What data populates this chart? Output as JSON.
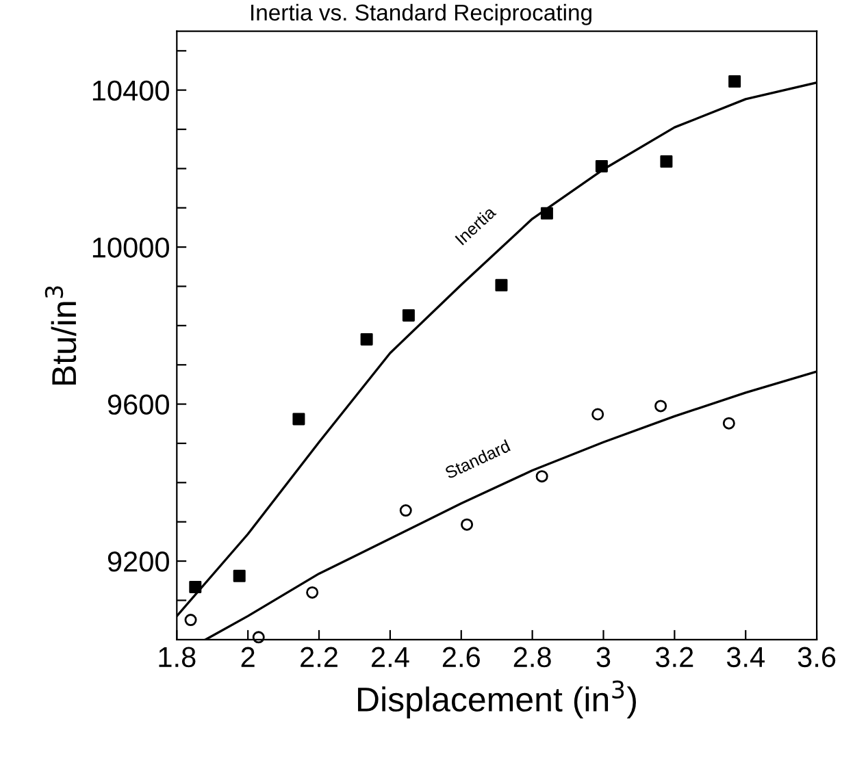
{
  "chart_data": {
    "type": "scatter",
    "title": "Inertia vs. Standard Reciprocating",
    "xlabel": "Displacement (in$^{3}$)",
    "ylabel": "Btu/in$^{3}$",
    "xlim": [
      1.8,
      3.6
    ],
    "xticks": [
      1.8,
      2,
      2.2,
      2.4,
      2.6,
      2.8,
      3,
      3.2,
      3.4,
      3.6
    ],
    "ylim": [
      9000,
      10550
    ],
    "yticks": [
      {
        "value": 9100,
        "label": null
      },
      9200,
      {
        "value": 9300,
        "label": null
      },
      {
        "value": 9400,
        "label": null
      },
      {
        "value": 9500,
        "label": null
      },
      9600,
      {
        "value": 9700,
        "label": null
      },
      {
        "value": 9800,
        "label": null
      },
      {
        "value": 9900,
        "label": null
      },
      10000,
      {
        "value": 10100,
        "label": null
      },
      {
        "value": 10200,
        "label": null
      },
      {
        "value": 10300,
        "label": null
      },
      10400,
      {
        "value": 10500,
        "label": null
      }
    ],
    "grid": false,
    "legend": false,
    "series": [
      {
        "marker": "square",
        "color": "#000000",
        "x": [
          1.852,
          1.976,
          2.143,
          2.334,
          2.452,
          2.713,
          2.841,
          2.995,
          3.177,
          3.369
        ],
        "values": [
          9134,
          9162,
          9562,
          9765,
          9826,
          9903,
          10086,
          10206,
          10218,
          10422
        ]
      },
      {
        "marker": "circle",
        "color": "#000000",
        "x": [
          1.839,
          2.03,
          2.181,
          2.444,
          2.616,
          2.827,
          2.984,
          3.161,
          3.353
        ],
        "values": [
          9050,
          9006,
          9120,
          9329,
          9293,
          9416,
          9574,
          9595,
          9551
        ]
      },
      {
        "type": "line",
        "name": "Inertia",
        "color": "#000000",
        "x": [
          1.8,
          2.0,
          2.2,
          2.4,
          2.6,
          2.8,
          3.0,
          3.2,
          3.4,
          3.6
        ],
        "values": [
          9060,
          9269,
          9503,
          9730,
          9904,
          10072,
          10198,
          10305,
          10377,
          10419
        ]
      },
      {
        "type": "line",
        "name": "Standard",
        "color": "#000000",
        "x": [
          1.881,
          2.0,
          2.2,
          2.4,
          2.6,
          2.8,
          3.0,
          3.2,
          3.4,
          3.6
        ],
        "values": [
          9000,
          9060,
          9168,
          9257,
          9347,
          9431,
          9503,
          9569,
          9629,
          9683
        ]
      }
    ]
  }
}
